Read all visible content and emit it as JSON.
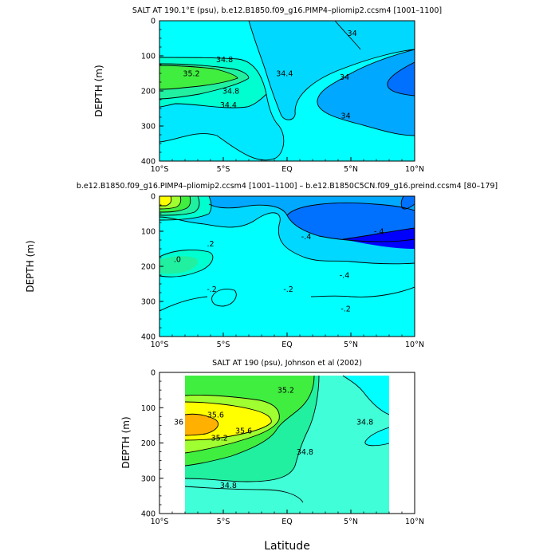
{
  "colors": {
    "cyan": "#00ffff",
    "light_blue": "#00d8ff",
    "sky_blue": "#00a8ff",
    "blue": "#0070ff",
    "deep_blue": "#0000ff",
    "aqua": "#40ffd8",
    "sea_green": "#20f0a0",
    "green": "#40ee40",
    "lime": "#a0ff30",
    "yellow": "#ffff00",
    "orange": "#ffb000"
  },
  "x_axis_label": "Latitude",
  "chart_data": [
    {
      "type": "contour",
      "title": "SALT AT 190.1°E (psu), b.e12.B1850.f09_g16.PIMP4–pliomip2.ccsm4 [1001–1100]",
      "xlabel": "",
      "ylabel": "DEPTH (m)",
      "xlim": [
        -10,
        10
      ],
      "ylim": [
        0,
        400
      ],
      "x_ticks": [
        -10,
        -5,
        0,
        5,
        10
      ],
      "x_tick_labels": [
        "10°S",
        "5°S",
        "EQ",
        "5°N",
        "10°N"
      ],
      "y_ticks": [
        0,
        100,
        200,
        300,
        400
      ],
      "y_tick_labels": [
        "0",
        "100",
        "200",
        "300",
        "400"
      ],
      "contour_labels": [
        {
          "text": "34",
          "x": 5.1,
          "y": 35
        },
        {
          "text": "34.8",
          "x": -4.9,
          "y": 110
        },
        {
          "text": "35.2",
          "x": -7.5,
          "y": 150
        },
        {
          "text": "34.4",
          "x": -0.2,
          "y": 150
        },
        {
          "text": "34",
          "x": 4.5,
          "y": 160
        },
        {
          "text": "34.8",
          "x": -4.4,
          "y": 200
        },
        {
          "text": "34.4",
          "x": -4.6,
          "y": 240
        },
        {
          "text": "34",
          "x": 4.6,
          "y": 270
        }
      ]
    },
    {
      "type": "contour",
      "title": "b.e12.B1850.f09_g16.PIMP4–pliomip2.ccsm4 [1001–1100] – b.e12.B1850C5CN.f09_g16.preind.ccsm4 [80–179]",
      "xlabel": "",
      "ylabel": "DEPTH (m)",
      "xlim": [
        -10,
        10
      ],
      "ylim": [
        0,
        400
      ],
      "x_ticks": [
        -10,
        -5,
        0,
        5,
        10
      ],
      "x_tick_labels": [
        "10°S",
        "5°S",
        "EQ",
        "5°N",
        "10°N"
      ],
      "y_ticks": [
        0,
        100,
        200,
        300,
        400
      ],
      "y_tick_labels": [
        "0",
        "100",
        "200",
        "300",
        "400"
      ],
      "contour_labels": [
        {
          "text": ".2",
          "x": -6.0,
          "y": 135
        },
        {
          "text": "-.4",
          "x": 1.5,
          "y": 115
        },
        {
          "text": "-.4",
          "x": 7.2,
          "y": 100
        },
        {
          "text": ".0",
          "x": -8.6,
          "y": 180
        },
        {
          "text": "-.4",
          "x": 4.5,
          "y": 225
        },
        {
          "text": "-.2",
          "x": -5.9,
          "y": 265
        },
        {
          "text": "-.2",
          "x": 0.1,
          "y": 265
        },
        {
          "text": "-.2",
          "x": 4.6,
          "y": 320
        }
      ]
    },
    {
      "type": "contour",
      "title": "SALT AT 190 (psu), Johnson et al (2002)",
      "xlabel": "",
      "ylabel": "DEPTH (m)",
      "xlim": [
        -10,
        10
      ],
      "ylim": [
        0,
        400
      ],
      "data_xlim": [
        -8,
        8
      ],
      "data_ylim": [
        10,
        400
      ],
      "x_ticks": [
        -10,
        -5,
        0,
        5,
        10
      ],
      "x_tick_labels": [
        "10°S",
        "5°S",
        "EQ",
        "5°N",
        "10°N"
      ],
      "y_ticks": [
        0,
        100,
        200,
        300,
        400
      ],
      "y_tick_labels": [
        "0",
        "100",
        "200",
        "300",
        "400"
      ],
      "contour_labels": [
        {
          "text": "35.2",
          "x": -0.1,
          "y": 50
        },
        {
          "text": "35.6",
          "x": -5.6,
          "y": 120
        },
        {
          "text": "36",
          "x": -8.5,
          "y": 140
        },
        {
          "text": "35.6",
          "x": -3.4,
          "y": 165
        },
        {
          "text": "35.2",
          "x": -5.3,
          "y": 185
        },
        {
          "text": "34.8",
          "x": 6.1,
          "y": 140
        },
        {
          "text": "34.8",
          "x": 1.4,
          "y": 225
        },
        {
          "text": "34.8",
          "x": -4.6,
          "y": 320
        }
      ]
    }
  ]
}
